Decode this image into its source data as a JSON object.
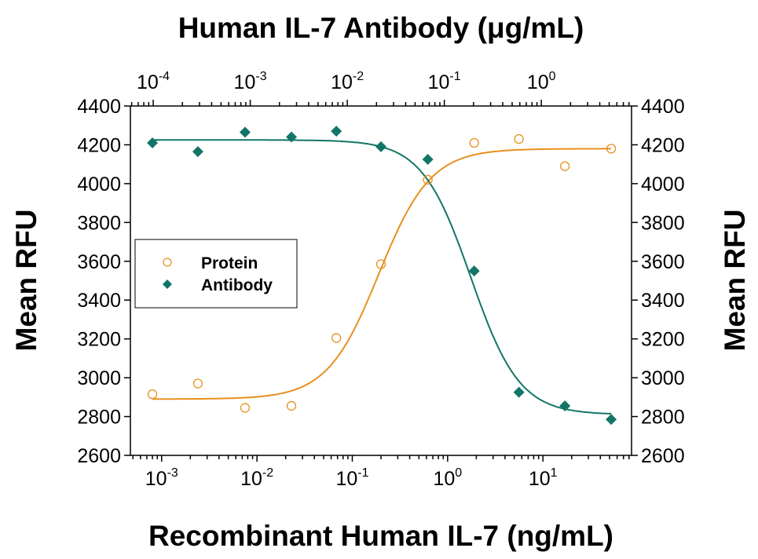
{
  "chart_data": {
    "type": "scatter",
    "title": "Human IL-7 Antibody (μg/mL)",
    "xlabel": "Recombinant Human IL-7 (ng/mL)",
    "ylabel": "Mean RFU",
    "ylabel_right": "Mean RFU",
    "x_scale": "log",
    "xlim": [
      0.00047,
      85
    ],
    "x_ticks": [
      0.001,
      0.01,
      0.1,
      1,
      10
    ],
    "x_tick_labels": [
      {
        "base": "10",
        "exp": "-3"
      },
      {
        "base": "10",
        "exp": "-2"
      },
      {
        "base": "10",
        "exp": "-1"
      },
      {
        "base": "10",
        "exp": "0"
      },
      {
        "base": "10",
        "exp": "1"
      }
    ],
    "top_xlim": [
      5.82e-05,
      8.5
    ],
    "top_x_ticks": [
      0.0001,
      0.001,
      0.01,
      0.1,
      1
    ],
    "top_x_tick_labels": [
      {
        "base": "10",
        "exp": "-4"
      },
      {
        "base": "10",
        "exp": "-3"
      },
      {
        "base": "10",
        "exp": "-2"
      },
      {
        "base": "10",
        "exp": "-1"
      },
      {
        "base": "10",
        "exp": "0"
      }
    ],
    "ylim": [
      2600,
      4400
    ],
    "y_ticks": [
      2600,
      2800,
      3000,
      3200,
      3400,
      3600,
      3800,
      4000,
      4200,
      4400
    ],
    "y_tick_labels": [
      "2600",
      "2800",
      "3000",
      "3200",
      "3400",
      "3600",
      "3800",
      "4000",
      "4200",
      "4400"
    ],
    "grid": false,
    "legend_position": "center-left",
    "series": [
      {
        "name": "Protein",
        "marker": "open-circle",
        "color": "#E8901E",
        "x": [
          0.0008,
          0.0024,
          0.0075,
          0.023,
          0.068,
          0.2,
          0.62,
          1.9,
          5.6,
          17,
          52
        ],
        "y": [
          2915,
          2970,
          2845,
          2855,
          3205,
          3585,
          4020,
          4210,
          4230,
          4090,
          4180
        ],
        "fit": {
          "model": "4PL",
          "bottom": 2890,
          "top": 4180,
          "ec50": 0.19,
          "hill": 1.6
        }
      },
      {
        "name": "Antibody",
        "marker": "filled-diamond",
        "color": "#137567",
        "x": [
          0.0008,
          0.0024,
          0.0075,
          0.023,
          0.068,
          0.2,
          0.62,
          1.9,
          5.6,
          17,
          52
        ],
        "y": [
          4210,
          4165,
          4265,
          4240,
          4270,
          4190,
          4125,
          3550,
          2925,
          2855,
          2785
        ],
        "fit": {
          "model": "4PL",
          "bottom": 2810,
          "top": 4225,
          "ec50": 1.75,
          "hill": 1.7
        }
      }
    ]
  }
}
